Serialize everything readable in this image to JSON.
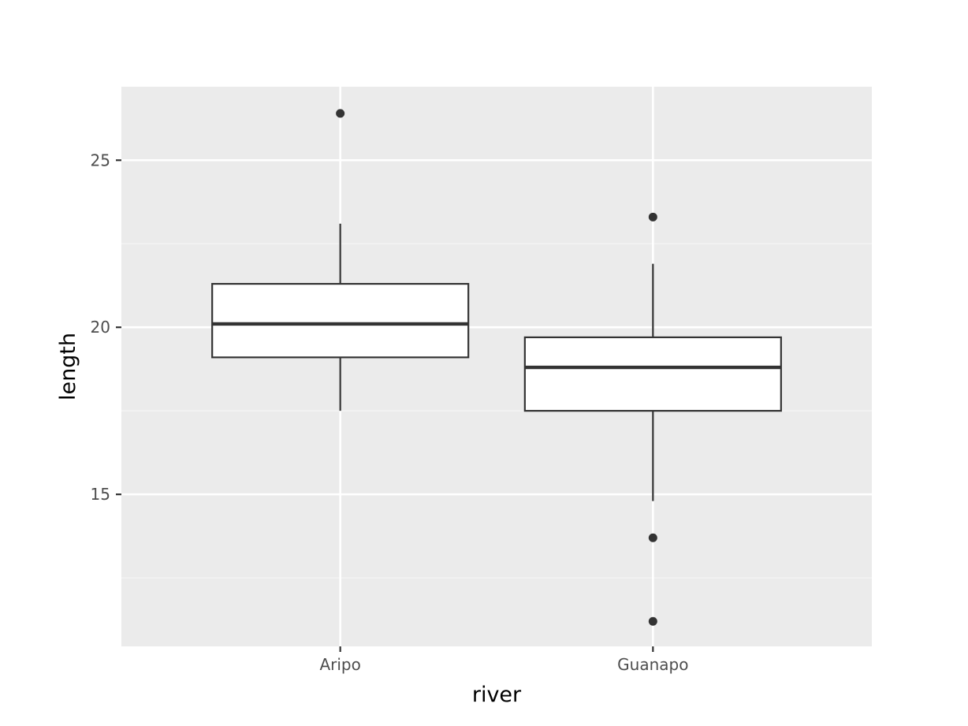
{
  "chart_data": {
    "type": "box",
    "xlabel": "river",
    "ylabel": "length",
    "categories": [
      "Aripo",
      "Guanapo"
    ],
    "ylim": [
      10.45,
      27.2
    ],
    "yticks": [
      15,
      20,
      25
    ],
    "grid": true,
    "boxes": [
      {
        "category": "Aripo",
        "q1": 19.1,
        "median": 20.1,
        "q3": 21.3,
        "whisker_low": 17.5,
        "whisker_high": 23.1,
        "outliers": [
          26.4
        ]
      },
      {
        "category": "Guanapo",
        "q1": 17.5,
        "median": 18.8,
        "q3": 19.7,
        "whisker_low": 14.8,
        "whisker_high": 21.9,
        "outliers": [
          23.3,
          13.7,
          11.2
        ]
      }
    ],
    "colors": {
      "panel_background": "#ebebeb",
      "grid_major": "#ffffff",
      "grid_minor": "#f5f5f5",
      "box_fill": "#ffffff",
      "box_line": "#333333",
      "tick_text": "#4d4d4d"
    }
  }
}
